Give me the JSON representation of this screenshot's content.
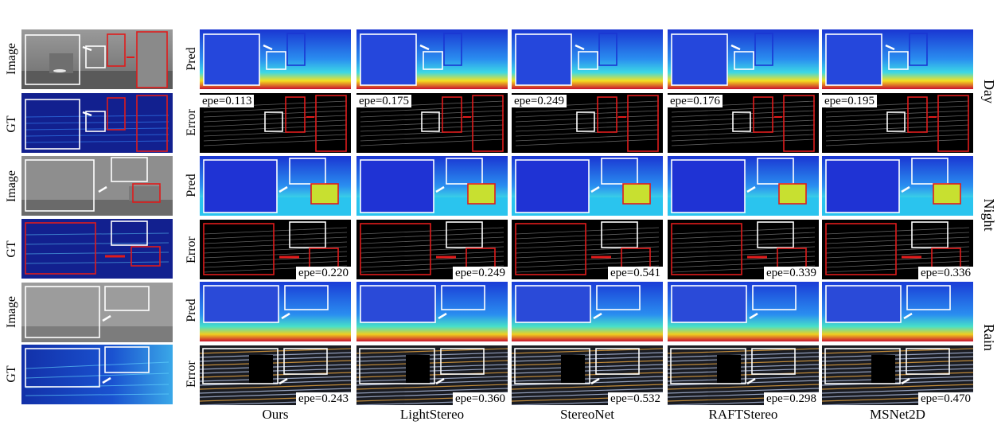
{
  "row_labels": [
    "Image",
    "GT",
    "Image",
    "GT",
    "Image",
    "GT"
  ],
  "method_row_labels": [
    "Pred",
    "Error",
    "Pred",
    "Error",
    "Pred",
    "Error"
  ],
  "conditions": [
    "Day",
    "Night",
    "Rain"
  ],
  "methods": [
    "Ours",
    "LightStereo",
    "StereoNet",
    "RAFTStereo",
    "MSNet2D"
  ],
  "epe": [
    [
      "epe=0.113",
      "epe=0.175",
      "epe=0.249",
      "epe=0.176",
      "epe=0.195"
    ],
    [
      "epe=0.220",
      "epe=0.249",
      "epe=0.541",
      "epe=0.339",
      "epe=0.336"
    ],
    [
      "epe=0.243",
      "epe=0.360",
      "epe=0.532",
      "epe=0.298",
      "epe=0.470"
    ]
  ],
  "colors": {
    "highlight_box_white": "#ffffff",
    "highlight_box_red": "#e01b1b",
    "pred_blue": "#1a2fd6",
    "pred_cyan": "#21c8f0",
    "pred_yellow": "#f6e01f",
    "pred_red": "#c8102e",
    "gt_blue": "#12208f",
    "error_bg": "#000000"
  },
  "icons": {
    "arrow": "white-arrow-icon",
    "red_arrow": "red-arrow-icon"
  }
}
